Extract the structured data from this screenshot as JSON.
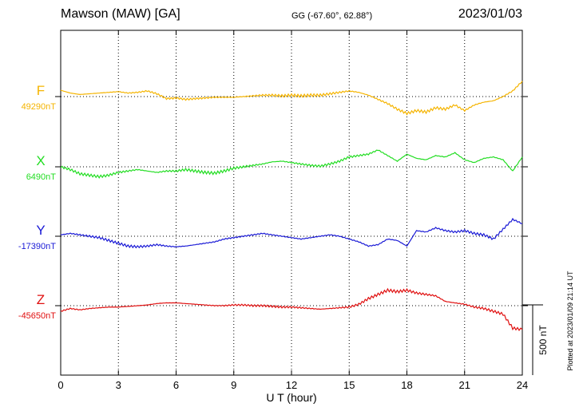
{
  "header": {
    "station": "Mawson (MAW)  [GA]",
    "coords": "GG (-67.60°,  62.88°)",
    "date": "2023/01/03"
  },
  "side_note": "Plotted at 2023/01/09 21:14 UT",
  "scale_label": "500 nT",
  "chart_data": {
    "type": "line",
    "xlabel": "U T (hour)",
    "xlim": [
      0,
      24
    ],
    "xticks": [
      "0",
      "3",
      "6",
      "9",
      "12",
      "15",
      "18",
      "21",
      "24"
    ],
    "scale_nT": 500,
    "grid": true,
    "series": [
      {
        "name": "F",
        "baseline_label": "49290nT",
        "color": "#f5b400",
        "x": [
          0,
          0.5,
          1,
          1.5,
          2,
          2.5,
          3,
          3.5,
          4,
          4.5,
          5,
          5.5,
          6,
          6.5,
          7,
          7.5,
          8,
          8.5,
          9,
          9.5,
          10,
          10.5,
          11,
          11.5,
          12,
          12.5,
          13,
          13.5,
          14,
          14.5,
          15,
          15.5,
          16,
          16.5,
          17,
          17.5,
          18,
          18.5,
          19,
          19.5,
          20,
          20.5,
          21,
          21.5,
          22,
          22.5,
          23,
          23.5,
          24
        ],
        "values": [
          45,
          25,
          15,
          20,
          25,
          30,
          35,
          25,
          30,
          40,
          20,
          -15,
          -10,
          -20,
          -15,
          -10,
          -5,
          -5,
          -5,
          0,
          5,
          10,
          10,
          5,
          10,
          5,
          10,
          10,
          20,
          30,
          40,
          30,
          10,
          -20,
          -50,
          -90,
          -120,
          -100,
          -110,
          -80,
          -90,
          -60,
          -100,
          -60,
          -40,
          -30,
          0,
          40,
          110
        ]
      },
      {
        "name": "X",
        "baseline_label": "6490nT",
        "color": "#22dd22",
        "x": [
          0,
          0.5,
          1,
          1.5,
          2,
          2.5,
          3,
          3.5,
          4,
          4.5,
          5,
          5.5,
          6,
          6.5,
          7,
          7.5,
          8,
          8.5,
          9,
          9.5,
          10,
          10.5,
          11,
          11.5,
          12,
          12.5,
          13,
          13.5,
          14,
          14.5,
          15,
          15.5,
          16,
          16.5,
          17,
          17.5,
          18,
          18.5,
          19,
          19.5,
          20,
          20.5,
          21,
          21.5,
          22,
          22.5,
          23,
          23.5,
          24
        ],
        "values": [
          0,
          -20,
          -50,
          -60,
          -70,
          -60,
          -40,
          -30,
          -20,
          -30,
          -40,
          -30,
          -30,
          -20,
          -30,
          -40,
          -45,
          -30,
          -10,
          0,
          10,
          20,
          35,
          40,
          30,
          20,
          10,
          5,
          20,
          40,
          70,
          80,
          90,
          120,
          80,
          40,
          90,
          60,
          50,
          80,
          70,
          100,
          50,
          30,
          60,
          70,
          50,
          -30,
          70
        ]
      },
      {
        "name": "Y",
        "baseline_label": "-17390nT",
        "color": "#1a1ad6",
        "x": [
          0,
          0.5,
          1,
          1.5,
          2,
          2.5,
          3,
          3.5,
          4,
          4.5,
          5,
          5.5,
          6,
          6.5,
          7,
          7.5,
          8,
          8.5,
          9,
          9.5,
          10,
          10.5,
          11,
          11.5,
          12,
          12.5,
          13,
          13.5,
          14,
          14.5,
          15,
          15.5,
          16,
          16.5,
          17,
          17.5,
          18,
          18.5,
          19,
          19.5,
          20,
          20.5,
          21,
          21.5,
          22,
          22.5,
          23,
          23.5,
          24
        ],
        "values": [
          10,
          20,
          10,
          0,
          -10,
          -30,
          -50,
          -70,
          -75,
          -70,
          -60,
          -70,
          -75,
          -70,
          -60,
          -50,
          -40,
          -20,
          -10,
          0,
          10,
          20,
          10,
          0,
          -10,
          -20,
          -10,
          0,
          10,
          0,
          -20,
          -40,
          -70,
          -60,
          -20,
          -30,
          -70,
          40,
          30,
          60,
          40,
          30,
          40,
          20,
          10,
          -20,
          50,
          120,
          90
        ]
      },
      {
        "name": "Z",
        "baseline_label": "-45650nT",
        "color": "#e01010",
        "x": [
          0,
          0.5,
          1,
          1.5,
          2,
          2.5,
          3,
          3.5,
          4,
          4.5,
          5,
          5.5,
          6,
          6.5,
          7,
          7.5,
          8,
          8.5,
          9,
          9.5,
          10,
          10.5,
          11,
          11.5,
          12,
          12.5,
          13,
          13.5,
          14,
          14.5,
          15,
          15.5,
          16,
          16.5,
          17,
          17.5,
          18,
          18.5,
          19,
          19.5,
          20,
          20.5,
          21,
          21.5,
          22,
          22.5,
          23,
          23.5,
          24
        ],
        "values": [
          -40,
          -20,
          -30,
          -20,
          -15,
          -10,
          -10,
          -5,
          0,
          5,
          15,
          20,
          20,
          15,
          10,
          5,
          0,
          0,
          5,
          5,
          0,
          0,
          -5,
          -10,
          -10,
          -15,
          -20,
          -25,
          -20,
          -15,
          -10,
          10,
          50,
          80,
          110,
          100,
          110,
          90,
          80,
          70,
          30,
          20,
          10,
          -10,
          -20,
          -40,
          -60,
          -160,
          -170
        ]
      }
    ]
  }
}
